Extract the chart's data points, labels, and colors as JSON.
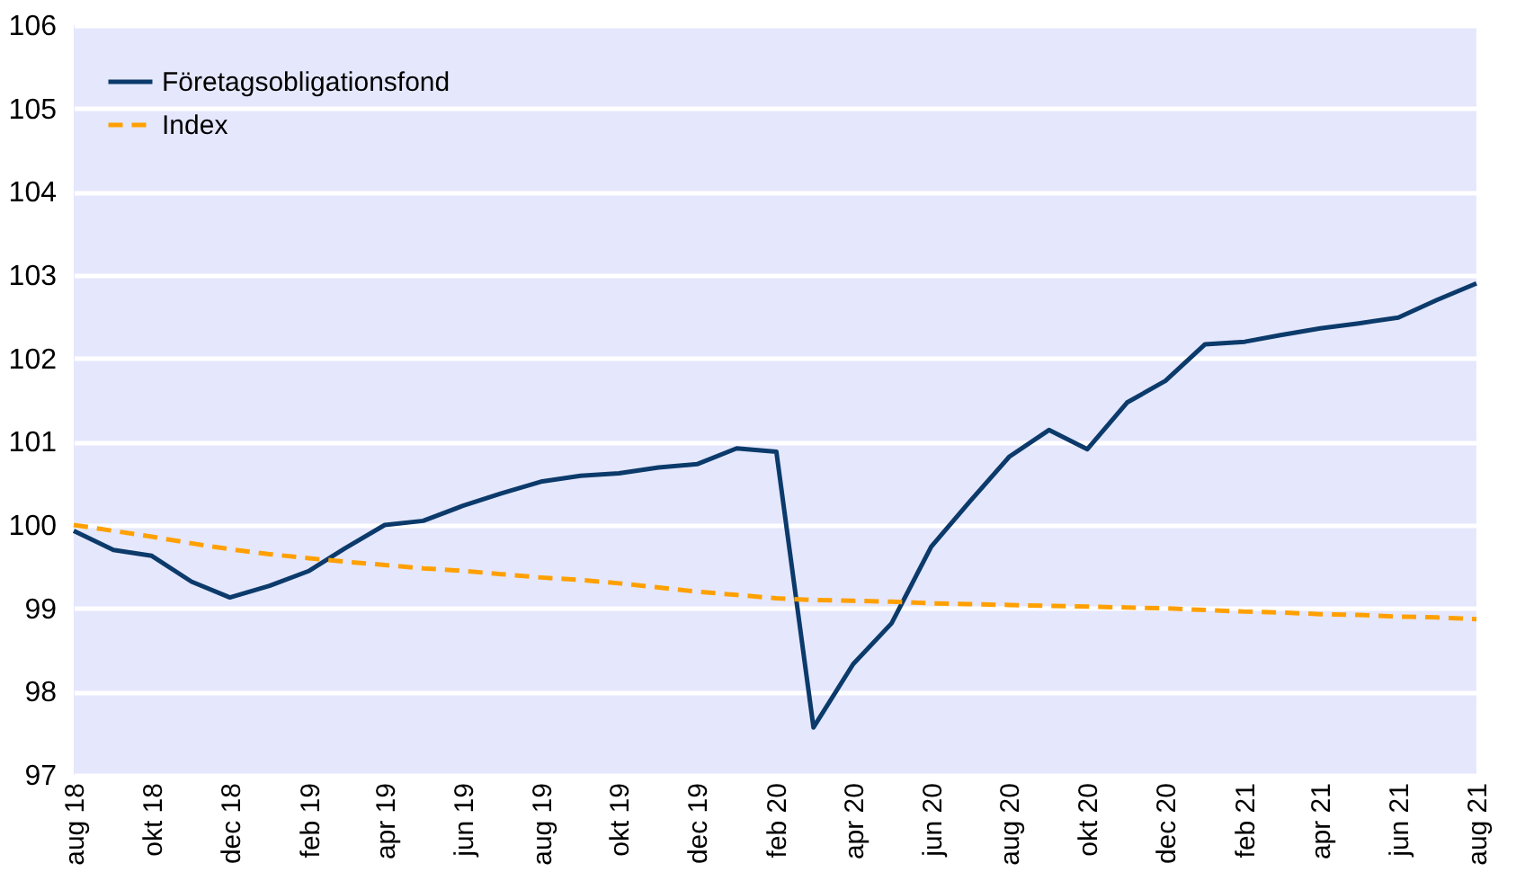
{
  "chart_data": {
    "type": "line",
    "x": [
      "2018-08",
      "2018-09",
      "2018-10",
      "2018-11",
      "2018-12",
      "2019-01",
      "2019-02",
      "2019-03",
      "2019-04",
      "2019-05",
      "2019-06",
      "2019-07",
      "2019-08",
      "2019-09",
      "2019-10",
      "2019-11",
      "2019-12",
      "2020-01",
      "2020-02",
      "2020-03",
      "2020-04",
      "2020-05",
      "2020-06",
      "2020-07",
      "2020-08",
      "2020-09",
      "2020-10",
      "2020-11",
      "2020-12",
      "2021-01",
      "2021-02",
      "2021-03",
      "2021-04",
      "2021-05",
      "2021-06",
      "2021-07",
      "2021-08"
    ],
    "series": [
      {
        "name": "Företagsobligationsfond",
        "color": "#0b3a6b",
        "line_style": "solid",
        "values": [
          99.93,
          99.7,
          99.63,
          99.32,
          99.13,
          99.27,
          99.45,
          99.72,
          100.0,
          100.05,
          100.23,
          100.38,
          100.52,
          100.59,
          100.62,
          100.69,
          100.73,
          100.92,
          100.88,
          97.57,
          98.33,
          98.82,
          99.74,
          100.28,
          100.82,
          101.14,
          100.91,
          101.47,
          101.73,
          102.17,
          102.2,
          102.28,
          102.36,
          102.42,
          102.49,
          102.7,
          102.9
        ]
      },
      {
        "name": "Index",
        "color": "#ffa000",
        "line_style": "dashed",
        "values": [
          100.0,
          99.93,
          99.86,
          99.78,
          99.71,
          99.65,
          99.6,
          99.56,
          99.52,
          99.48,
          99.45,
          99.41,
          99.37,
          99.34,
          99.3,
          99.25,
          99.2,
          99.16,
          99.12,
          99.1,
          99.09,
          99.08,
          99.06,
          99.05,
          99.04,
          99.03,
          99.02,
          99.01,
          99.0,
          98.98,
          98.96,
          98.95,
          98.93,
          98.92,
          98.9,
          98.89,
          98.87
        ]
      }
    ],
    "xlim": [
      "2018-08",
      "2021-08"
    ],
    "xticks": [
      {
        "value": "2018-08",
        "label": "aug 18"
      },
      {
        "value": "2018-10",
        "label": "okt 18"
      },
      {
        "value": "2018-12",
        "label": "dec 18"
      },
      {
        "value": "2019-02",
        "label": "feb 19"
      },
      {
        "value": "2019-04",
        "label": "apr 19"
      },
      {
        "value": "2019-06",
        "label": "jun 19"
      },
      {
        "value": "2019-08",
        "label": "aug 19"
      },
      {
        "value": "2019-10",
        "label": "okt 19"
      },
      {
        "value": "2019-12",
        "label": "dec 19"
      },
      {
        "value": "2020-02",
        "label": "feb 20"
      },
      {
        "value": "2020-04",
        "label": "apr 20"
      },
      {
        "value": "2020-06",
        "label": "jun 20"
      },
      {
        "value": "2020-08",
        "label": "aug 20"
      },
      {
        "value": "2020-10",
        "label": "okt 20"
      },
      {
        "value": "2020-12",
        "label": "dec 20"
      },
      {
        "value": "2021-02",
        "label": "feb 21"
      },
      {
        "value": "2021-04",
        "label": "apr 21"
      },
      {
        "value": "2021-06",
        "label": "jun 21"
      },
      {
        "value": "2021-08",
        "label": "aug 21"
      }
    ],
    "ylim": [
      97,
      106
    ],
    "yticks": [
      97,
      98,
      99,
      100,
      101,
      102,
      103,
      104,
      105,
      106
    ],
    "grid": "y",
    "legend": "top left",
    "marker": "none"
  }
}
